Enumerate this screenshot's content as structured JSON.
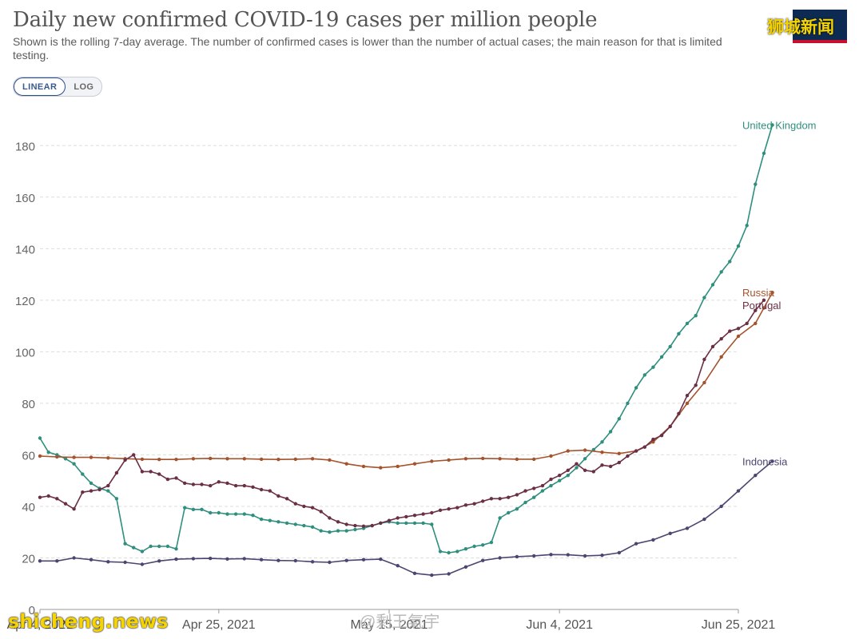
{
  "header": {
    "title": "Daily new confirmed COVID-19 cases per million people",
    "subtitle": "Shown is the rolling 7-day average. The number of confirmed cases is lower than the number of actual cases; the main reason for that is limited testing."
  },
  "controls": {
    "linear_label": "LINEAR",
    "log_label": "LOG",
    "active": "linear"
  },
  "watermarks": {
    "top_right": "狮城新闻",
    "bottom_left": "shicheng.news",
    "center": "@剩王氣宇"
  },
  "chart_data": {
    "type": "line",
    "x_tick_labels": [
      "Apr 4, 2021",
      "Apr 25, 2021",
      "May 15, 2021",
      "Jun 4, 2021",
      "Jun 25, 2021"
    ],
    "x_ticks": [
      "2021-04-04",
      "2021-04-25",
      "2021-05-15",
      "2021-06-04",
      "2021-06-25"
    ],
    "xlim": [
      "2021-04-04",
      "2021-06-25"
    ],
    "ylim": [
      0,
      190
    ],
    "yticks": [
      0,
      20,
      40,
      60,
      80,
      100,
      120,
      140,
      160,
      180
    ],
    "grid": "horizontal dashed",
    "series": [
      {
        "name": "United Kingdom",
        "color": "#2f8f7f",
        "points": [
          [
            "2021-04-04",
            66.5
          ],
          [
            "2021-04-05",
            61
          ],
          [
            "2021-04-06",
            60
          ],
          [
            "2021-04-07",
            58.5
          ],
          [
            "2021-04-08",
            56.5
          ],
          [
            "2021-04-09",
            52.5
          ],
          [
            "2021-04-10",
            49
          ],
          [
            "2021-04-11",
            47
          ],
          [
            "2021-04-12",
            46
          ],
          [
            "2021-04-13",
            43
          ],
          [
            "2021-04-14",
            25.5
          ],
          [
            "2021-04-15",
            24
          ],
          [
            "2021-04-16",
            22.5
          ],
          [
            "2021-04-17",
            24.5
          ],
          [
            "2021-04-18",
            24.5
          ],
          [
            "2021-04-19",
            24.5
          ],
          [
            "2021-04-20",
            23.5
          ],
          [
            "2021-04-21",
            39.5
          ],
          [
            "2021-04-22",
            38.8
          ],
          [
            "2021-04-23",
            38.8
          ],
          [
            "2021-04-24",
            37.5
          ],
          [
            "2021-04-25",
            37.5
          ],
          [
            "2021-04-26",
            37
          ],
          [
            "2021-04-27",
            37
          ],
          [
            "2021-04-28",
            37
          ],
          [
            "2021-04-29",
            36.5
          ],
          [
            "2021-04-30",
            35
          ],
          [
            "2021-05-01",
            34.5
          ],
          [
            "2021-05-02",
            34
          ],
          [
            "2021-05-03",
            33.5
          ],
          [
            "2021-05-04",
            33
          ],
          [
            "2021-05-05",
            32.5
          ],
          [
            "2021-05-06",
            32
          ],
          [
            "2021-05-07",
            30.5
          ],
          [
            "2021-05-08",
            30
          ],
          [
            "2021-05-09",
            30.5
          ],
          [
            "2021-05-10",
            30.5
          ],
          [
            "2021-05-11",
            31
          ],
          [
            "2021-05-12",
            31.5
          ],
          [
            "2021-05-13",
            32.5
          ],
          [
            "2021-05-14",
            33.5
          ],
          [
            "2021-05-15",
            34
          ],
          [
            "2021-05-16",
            33.5
          ],
          [
            "2021-05-17",
            33.5
          ],
          [
            "2021-05-18",
            33.5
          ],
          [
            "2021-05-19",
            33.5
          ],
          [
            "2021-05-20",
            33
          ],
          [
            "2021-05-21",
            22.5
          ],
          [
            "2021-05-22",
            22
          ],
          [
            "2021-05-23",
            22.5
          ],
          [
            "2021-05-24",
            23.5
          ],
          [
            "2021-05-25",
            24.5
          ],
          [
            "2021-05-26",
            25
          ],
          [
            "2021-05-27",
            26
          ],
          [
            "2021-05-28",
            35.5
          ],
          [
            "2021-05-29",
            37.5
          ],
          [
            "2021-05-30",
            39
          ],
          [
            "2021-05-31",
            41.5
          ],
          [
            "2021-06-01",
            43.5
          ],
          [
            "2021-06-02",
            46
          ],
          [
            "2021-06-03",
            48
          ],
          [
            "2021-06-04",
            50
          ],
          [
            "2021-06-05",
            52
          ],
          [
            "2021-06-06",
            55
          ],
          [
            "2021-06-07",
            58.5
          ],
          [
            "2021-06-08",
            62
          ],
          [
            "2021-06-09",
            65
          ],
          [
            "2021-06-10",
            69
          ],
          [
            "2021-06-11",
            74
          ],
          [
            "2021-06-12",
            80
          ],
          [
            "2021-06-13",
            86
          ],
          [
            "2021-06-14",
            91
          ],
          [
            "2021-06-15",
            94
          ],
          [
            "2021-06-16",
            98
          ],
          [
            "2021-06-17",
            102
          ],
          [
            "2021-06-18",
            107
          ],
          [
            "2021-06-19",
            111
          ],
          [
            "2021-06-20",
            114
          ],
          [
            "2021-06-21",
            121
          ],
          [
            "2021-06-22",
            126
          ],
          [
            "2021-06-23",
            131
          ],
          [
            "2021-06-24",
            135
          ],
          [
            "2021-06-25",
            141
          ],
          [
            "2021-06-26",
            149
          ],
          [
            "2021-06-27",
            165
          ],
          [
            "2021-06-28",
            177
          ],
          [
            "2021-06-29",
            188
          ]
        ]
      },
      {
        "name": "Russia",
        "color": "#a4532d",
        "points": [
          [
            "2021-04-04",
            59.5
          ],
          [
            "2021-04-06",
            59.2
          ],
          [
            "2021-04-08",
            59
          ],
          [
            "2021-04-10",
            59
          ],
          [
            "2021-04-12",
            58.8
          ],
          [
            "2021-04-14",
            58.5
          ],
          [
            "2021-04-16",
            58.3
          ],
          [
            "2021-04-18",
            58.2
          ],
          [
            "2021-04-20",
            58.2
          ],
          [
            "2021-04-22",
            58.5
          ],
          [
            "2021-04-24",
            58.6
          ],
          [
            "2021-04-26",
            58.5
          ],
          [
            "2021-04-28",
            58.5
          ],
          [
            "2021-04-30",
            58.3
          ],
          [
            "2021-05-02",
            58.2
          ],
          [
            "2021-05-04",
            58.3
          ],
          [
            "2021-05-06",
            58.5
          ],
          [
            "2021-05-08",
            58
          ],
          [
            "2021-05-10",
            56.5
          ],
          [
            "2021-05-12",
            55.5
          ],
          [
            "2021-05-14",
            55
          ],
          [
            "2021-05-16",
            55.5
          ],
          [
            "2021-05-18",
            56.5
          ],
          [
            "2021-05-20",
            57.5
          ],
          [
            "2021-05-22",
            58
          ],
          [
            "2021-05-24",
            58.5
          ],
          [
            "2021-05-26",
            58.6
          ],
          [
            "2021-05-28",
            58.5
          ],
          [
            "2021-05-30",
            58.3
          ],
          [
            "2021-06-01",
            58.3
          ],
          [
            "2021-06-03",
            59.5
          ],
          [
            "2021-06-05",
            61.5
          ],
          [
            "2021-06-07",
            61.8
          ],
          [
            "2021-06-09",
            61
          ],
          [
            "2021-06-11",
            60.5
          ],
          [
            "2021-06-13",
            61.5
          ],
          [
            "2021-06-15",
            65
          ],
          [
            "2021-06-17",
            71
          ],
          [
            "2021-06-19",
            80
          ],
          [
            "2021-06-21",
            88
          ],
          [
            "2021-06-23",
            98
          ],
          [
            "2021-06-25",
            106
          ],
          [
            "2021-06-27",
            111
          ],
          [
            "2021-06-28",
            117
          ],
          [
            "2021-06-29",
            123
          ]
        ]
      },
      {
        "name": "Portugal",
        "color": "#6b2f45",
        "points": [
          [
            "2021-04-04",
            43.5
          ],
          [
            "2021-04-05",
            44
          ],
          [
            "2021-04-06",
            43
          ],
          [
            "2021-04-07",
            41
          ],
          [
            "2021-04-08",
            39
          ],
          [
            "2021-04-09",
            45.5
          ],
          [
            "2021-04-10",
            46
          ],
          [
            "2021-04-11",
            46.5
          ],
          [
            "2021-04-12",
            48
          ],
          [
            "2021-04-13",
            53
          ],
          [
            "2021-04-14",
            58
          ],
          [
            "2021-04-15",
            60
          ],
          [
            "2021-04-16",
            53.5
          ],
          [
            "2021-04-17",
            53.5
          ],
          [
            "2021-04-18",
            52.5
          ],
          [
            "2021-04-19",
            50.5
          ],
          [
            "2021-04-20",
            51
          ],
          [
            "2021-04-21",
            49
          ],
          [
            "2021-04-22",
            48.5
          ],
          [
            "2021-04-23",
            48.5
          ],
          [
            "2021-04-24",
            48
          ],
          [
            "2021-04-25",
            49.5
          ],
          [
            "2021-04-26",
            49
          ],
          [
            "2021-04-27",
            48
          ],
          [
            "2021-04-28",
            48
          ],
          [
            "2021-04-29",
            47.5
          ],
          [
            "2021-04-30",
            46.5
          ],
          [
            "2021-05-01",
            46
          ],
          [
            "2021-05-02",
            44
          ],
          [
            "2021-05-03",
            43
          ],
          [
            "2021-05-04",
            41
          ],
          [
            "2021-05-05",
            40
          ],
          [
            "2021-05-06",
            39.5
          ],
          [
            "2021-05-07",
            38
          ],
          [
            "2021-05-08",
            35.5
          ],
          [
            "2021-05-09",
            34
          ],
          [
            "2021-05-10",
            33
          ],
          [
            "2021-05-11",
            32.5
          ],
          [
            "2021-05-12",
            32.3
          ],
          [
            "2021-05-13",
            32.5
          ],
          [
            "2021-05-14",
            33.5
          ],
          [
            "2021-05-15",
            34.5
          ],
          [
            "2021-05-16",
            35.5
          ],
          [
            "2021-05-17",
            36
          ],
          [
            "2021-05-18",
            36.5
          ],
          [
            "2021-05-19",
            37
          ],
          [
            "2021-05-20",
            37.5
          ],
          [
            "2021-05-21",
            38.5
          ],
          [
            "2021-05-22",
            39
          ],
          [
            "2021-05-23",
            39.5
          ],
          [
            "2021-05-24",
            40.5
          ],
          [
            "2021-05-25",
            41
          ],
          [
            "2021-05-26",
            42
          ],
          [
            "2021-05-27",
            43
          ],
          [
            "2021-05-28",
            43
          ],
          [
            "2021-05-29",
            43.5
          ],
          [
            "2021-05-30",
            44.5
          ],
          [
            "2021-05-31",
            46
          ],
          [
            "2021-06-01",
            47
          ],
          [
            "2021-06-02",
            48
          ],
          [
            "2021-06-03",
            50.5
          ],
          [
            "2021-06-04",
            52
          ],
          [
            "2021-06-05",
            54
          ],
          [
            "2021-06-06",
            56.5
          ],
          [
            "2021-06-07",
            54
          ],
          [
            "2021-06-08",
            53.5
          ],
          [
            "2021-06-09",
            56
          ],
          [
            "2021-06-10",
            55.5
          ],
          [
            "2021-06-11",
            57
          ],
          [
            "2021-06-12",
            59.5
          ],
          [
            "2021-06-13",
            61.5
          ],
          [
            "2021-06-14",
            63
          ],
          [
            "2021-06-15",
            66
          ],
          [
            "2021-06-16",
            67.5
          ],
          [
            "2021-06-17",
            71
          ],
          [
            "2021-06-18",
            76
          ],
          [
            "2021-06-19",
            83
          ],
          [
            "2021-06-20",
            87
          ],
          [
            "2021-06-21",
            97
          ],
          [
            "2021-06-22",
            102
          ],
          [
            "2021-06-23",
            105
          ],
          [
            "2021-06-24",
            108
          ],
          [
            "2021-06-25",
            109
          ],
          [
            "2021-06-26",
            111
          ],
          [
            "2021-06-27",
            116
          ],
          [
            "2021-06-28",
            120
          ]
        ]
      },
      {
        "name": "Indonesia",
        "color": "#4b4570",
        "points": [
          [
            "2021-04-04",
            18.8
          ],
          [
            "2021-04-06",
            18.8
          ],
          [
            "2021-04-08",
            20
          ],
          [
            "2021-04-10",
            19.3
          ],
          [
            "2021-04-12",
            18.5
          ],
          [
            "2021-04-14",
            18.3
          ],
          [
            "2021-04-16",
            17.5
          ],
          [
            "2021-04-18",
            18.8
          ],
          [
            "2021-04-20",
            19.5
          ],
          [
            "2021-04-22",
            19.7
          ],
          [
            "2021-04-24",
            19.8
          ],
          [
            "2021-04-26",
            19.6
          ],
          [
            "2021-04-28",
            19.7
          ],
          [
            "2021-04-30",
            19.3
          ],
          [
            "2021-05-02",
            19
          ],
          [
            "2021-05-04",
            18.9
          ],
          [
            "2021-05-06",
            18.5
          ],
          [
            "2021-05-08",
            18.3
          ],
          [
            "2021-05-10",
            19
          ],
          [
            "2021-05-12",
            19.3
          ],
          [
            "2021-05-14",
            19.5
          ],
          [
            "2021-05-16",
            17
          ],
          [
            "2021-05-18",
            14
          ],
          [
            "2021-05-20",
            13.3
          ],
          [
            "2021-05-22",
            13.8
          ],
          [
            "2021-05-24",
            16.5
          ],
          [
            "2021-05-26",
            19
          ],
          [
            "2021-05-28",
            20
          ],
          [
            "2021-05-30",
            20.5
          ],
          [
            "2021-06-01",
            20.8
          ],
          [
            "2021-06-03",
            21.3
          ],
          [
            "2021-06-05",
            21.2
          ],
          [
            "2021-06-07",
            20.8
          ],
          [
            "2021-06-09",
            21
          ],
          [
            "2021-06-11",
            22
          ],
          [
            "2021-06-13",
            25.5
          ],
          [
            "2021-06-15",
            27
          ],
          [
            "2021-06-17",
            29.5
          ],
          [
            "2021-06-19",
            31.5
          ],
          [
            "2021-06-21",
            35
          ],
          [
            "2021-06-23",
            40
          ],
          [
            "2021-06-25",
            46
          ],
          [
            "2021-06-27",
            52
          ],
          [
            "2021-06-29",
            57.5
          ]
        ]
      }
    ]
  }
}
